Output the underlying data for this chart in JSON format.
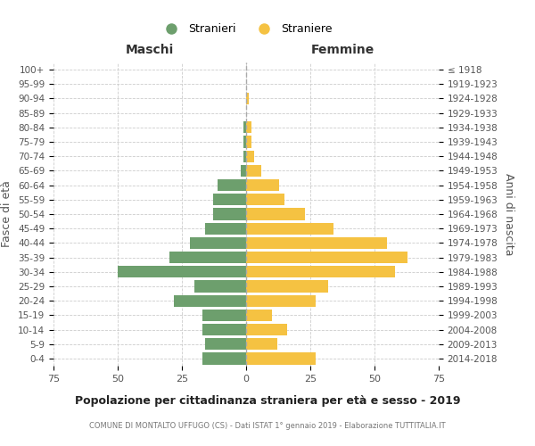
{
  "age_groups": [
    "0-4",
    "5-9",
    "10-14",
    "15-19",
    "20-24",
    "25-29",
    "30-34",
    "35-39",
    "40-44",
    "45-49",
    "50-54",
    "55-59",
    "60-64",
    "65-69",
    "70-74",
    "75-79",
    "80-84",
    "85-89",
    "90-94",
    "95-99",
    "100+"
  ],
  "birth_years": [
    "2014-2018",
    "2009-2013",
    "2004-2008",
    "1999-2003",
    "1994-1998",
    "1989-1993",
    "1984-1988",
    "1979-1983",
    "1974-1978",
    "1969-1973",
    "1964-1968",
    "1959-1963",
    "1954-1958",
    "1949-1953",
    "1944-1948",
    "1939-1943",
    "1934-1938",
    "1929-1933",
    "1924-1928",
    "1919-1923",
    "≤ 1918"
  ],
  "males": [
    17,
    16,
    17,
    17,
    28,
    20,
    50,
    30,
    22,
    16,
    13,
    13,
    11,
    2,
    1,
    1,
    1,
    0,
    0,
    0,
    0
  ],
  "females": [
    27,
    12,
    16,
    10,
    27,
    32,
    58,
    63,
    55,
    34,
    23,
    15,
    13,
    6,
    3,
    2,
    2,
    0,
    1,
    0,
    0
  ],
  "male_color": "#6d9f6d",
  "female_color": "#f5c242",
  "background_color": "#ffffff",
  "grid_color": "#cccccc",
  "title": "Popolazione per cittadinanza straniera per età e sesso - 2019",
  "subtitle": "COMUNE DI MONTALTO UFFUGO (CS) - Dati ISTAT 1° gennaio 2019 - Elaborazione TUTTITALIA.IT",
  "xlabel_left": "Maschi",
  "xlabel_right": "Femmine",
  "ylabel_left": "Fasce di età",
  "ylabel_right": "Anni di nascita",
  "legend_male": "Stranieri",
  "legend_female": "Straniere",
  "xlim": 75
}
